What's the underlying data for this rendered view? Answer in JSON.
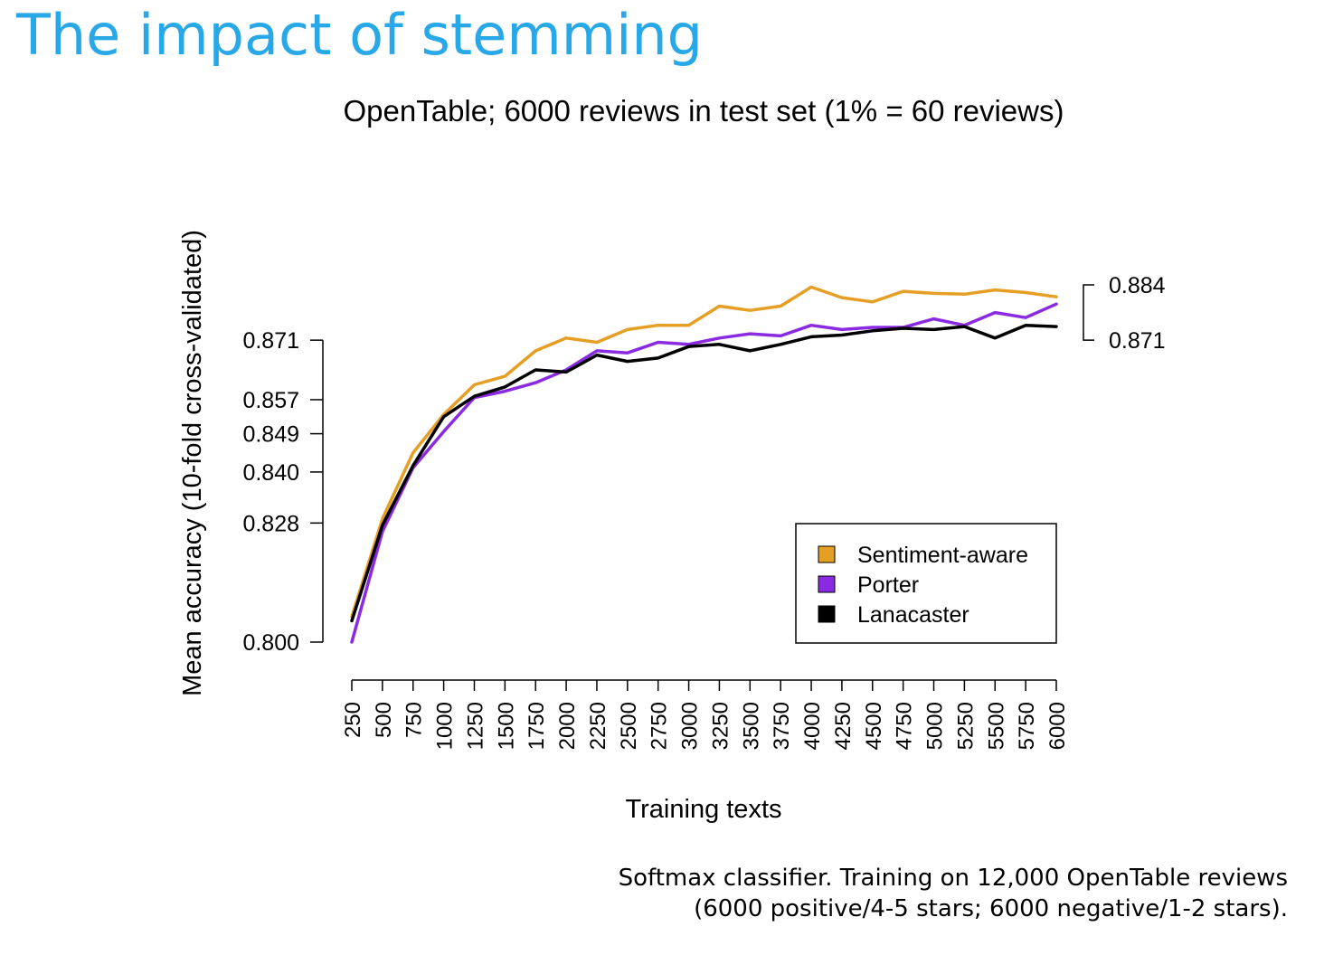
{
  "slide": {
    "title": "The impact of stemming",
    "caption_line1": "Softmax classifier. Training on 12,000 OpenTable reviews",
    "caption_line2": "(6000 positive/4-5 stars; 6000 negative/1-2 stars)."
  },
  "chart_data": {
    "type": "line",
    "title": "OpenTable; 6000 reviews in test set (1% = 60 reviews)",
    "xlabel": "Training texts",
    "ylabel": "Mean accuracy (10-fold cross-validated)",
    "x": [
      250,
      500,
      750,
      1000,
      1250,
      1500,
      1750,
      2000,
      2250,
      2500,
      2750,
      3000,
      3250,
      3500,
      3750,
      4000,
      4250,
      4500,
      4750,
      5000,
      5250,
      5500,
      5750,
      6000
    ],
    "x_tick_labels": [
      "250",
      "500",
      "750",
      "1000",
      "1250",
      "1500",
      "1750",
      "2000",
      "2250",
      "2500",
      "2750",
      "3000",
      "3250",
      "3500",
      "3750",
      "4000",
      "4250",
      "4500",
      "4750",
      "5000",
      "5250",
      "5500",
      "5750",
      "6000"
    ],
    "ylim": [
      0.8,
      0.884
    ],
    "y_ticks": [
      0.8,
      0.828,
      0.84,
      0.849,
      0.857,
      0.871
    ],
    "y_tick_labels": [
      "0.800",
      "0.828",
      "0.840",
      "0.849",
      "0.857",
      "0.871"
    ],
    "right_bracket": {
      "top": 0.884,
      "bottom": 0.871,
      "top_label": "0.884",
      "bottom_label": "0.871"
    },
    "legend_position": "bottom-right",
    "grid": false,
    "series": [
      {
        "name": "Sentiment-aware",
        "color": "#e69f25",
        "values": [
          0.806,
          0.829,
          0.8445,
          0.8535,
          0.8605,
          0.8625,
          0.8685,
          0.8715,
          0.8705,
          0.8735,
          0.8745,
          0.8745,
          0.879,
          0.878,
          0.879,
          0.8835,
          0.881,
          0.88,
          0.8825,
          0.882,
          0.8818,
          0.8828,
          0.8822,
          0.8812
        ]
      },
      {
        "name": "Porter",
        "color": "#8a2be2",
        "values": [
          0.8,
          0.826,
          0.841,
          0.8495,
          0.8575,
          0.859,
          0.861,
          0.864,
          0.8685,
          0.868,
          0.8705,
          0.87,
          0.8715,
          0.8725,
          0.872,
          0.8745,
          0.8735,
          0.874,
          0.874,
          0.876,
          0.8745,
          0.8775,
          0.8763,
          0.8795
        ]
      },
      {
        "name": "Lanacaster",
        "color": "#000000",
        "values": [
          0.805,
          0.8275,
          0.8415,
          0.853,
          0.8578,
          0.86,
          0.864,
          0.8635,
          0.8675,
          0.866,
          0.8668,
          0.8695,
          0.87,
          0.8685,
          0.87,
          0.8718,
          0.8722,
          0.8732,
          0.8738,
          0.8735,
          0.8742,
          0.8715,
          0.8745,
          0.8742
        ]
      }
    ]
  }
}
